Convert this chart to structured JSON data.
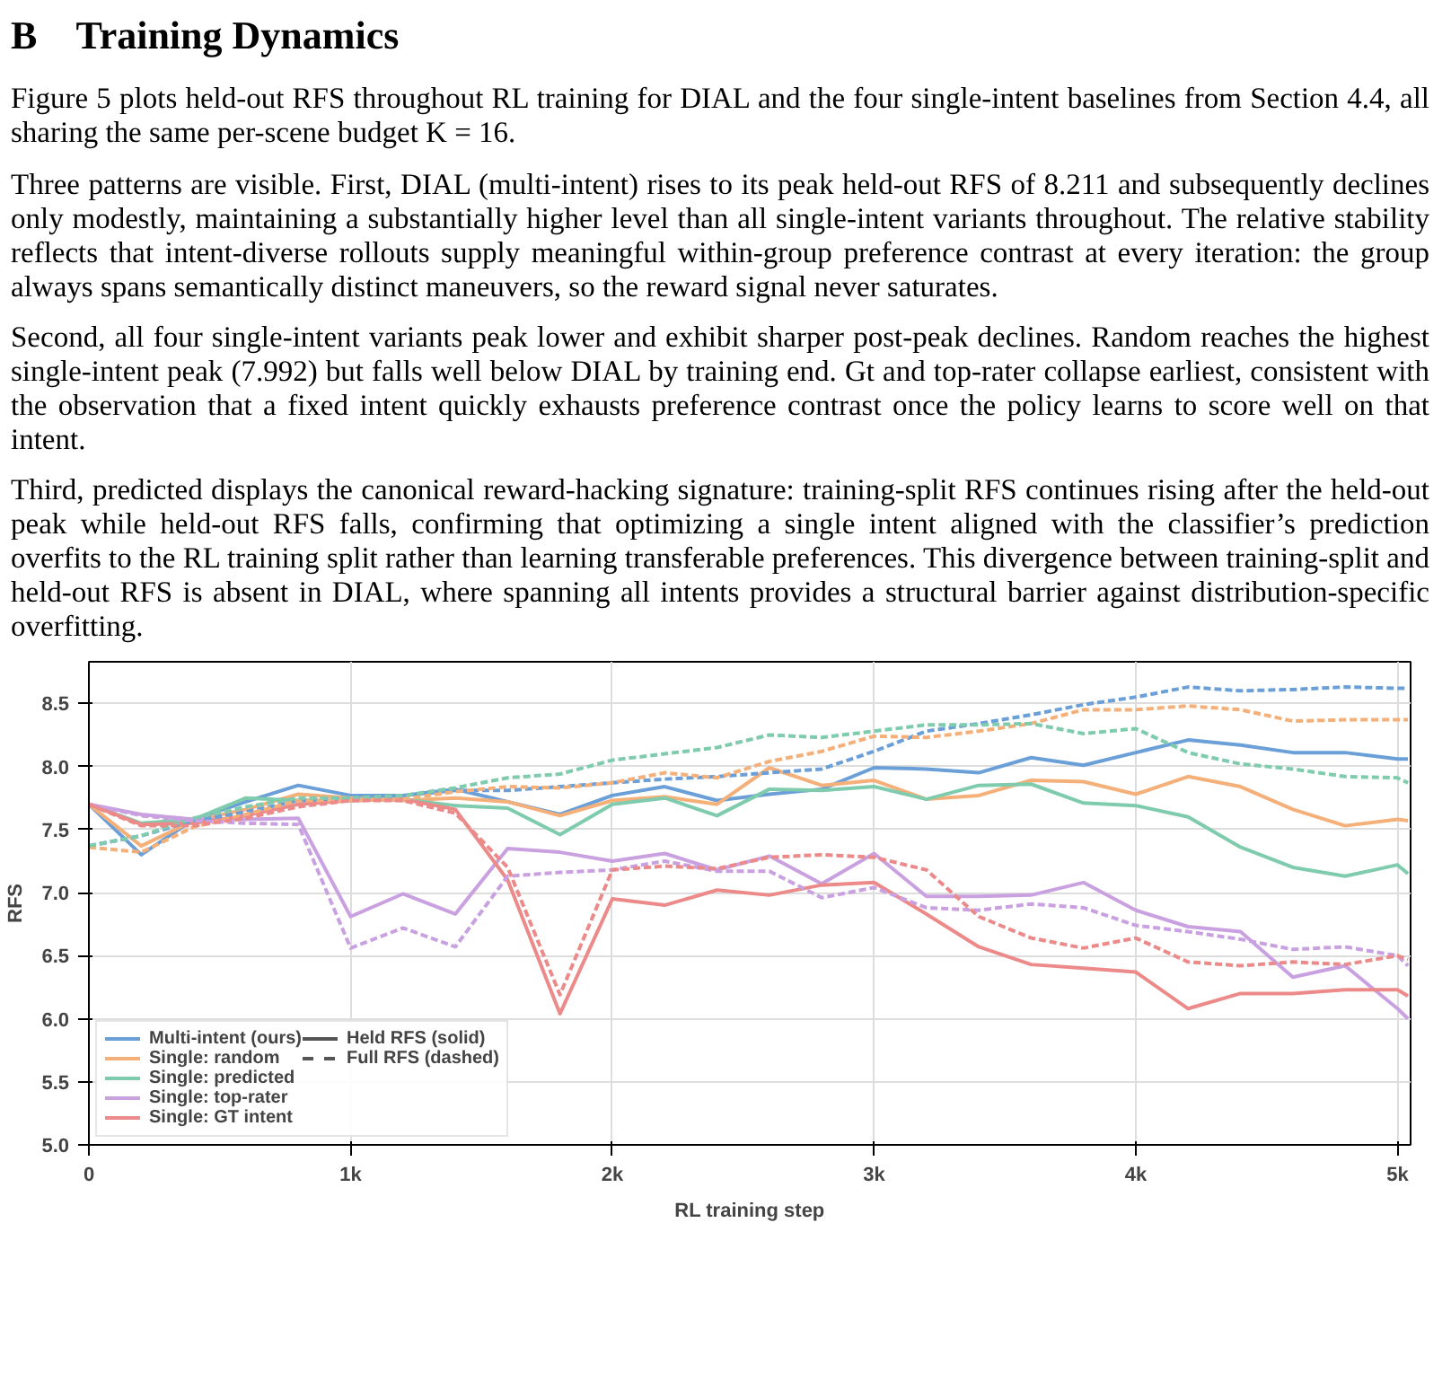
{
  "chart_data": {
    "type": "line",
    "title": "B    Training Dynamics",
    "annotations": [
      "Figure 5 plots held-out RFS throughout RL training for DIAL and the four single-intent baselines from Section 4.4, all sharing the same per-scene budget K = 16.",
      "Three patterns are visible. First, DIAL (multi-intent) rises to its peak held-out RFS of 8.211 and subsequently declines only modestly, maintaining a substantially higher level than all single-intent variants throughout. The relative stability reflects that intent-diverse rollouts supply meaningful within-group preference contrast at every iteration: the group always spans semantically distinct maneuvers, so the reward signal never saturates.",
      "Second, all four single-intent variants peak lower and exhibit sharper post-peak declines. Random reaches the highest single-intent peak (7.992) but falls well below DIAL by training end. Gt and top-rater collapse earliest, consistent with the observation that a fixed intent quickly exhausts preference contrast once the policy learns to score well on that intent.",
      "Third, predicted displays the canonical reward-hacking signature: training-split RFS continues rising after the held-out peak while held-out RFS falls, confirming that optimizing a single intent aligned with the classifier’s prediction overfits to the RL training split rather than learning transferable preferences. This divergence between training-split and held-out RFS is absent in DIAL, where spanning all intents provides a structural barrier against distribution-specific overfitting.",
      "Held RFS (solid)",
      "Full RFS (dashed)"
    ],
    "xlabel": "RL training step",
    "ylabel": "RFS",
    "x": [
      0,
      200,
      400,
      600,
      800,
      1000,
      1200,
      1400,
      1600,
      1800,
      2000,
      2200,
      2400,
      2600,
      2800,
      3000,
      3200,
      3400,
      3600,
      3800,
      4000,
      4200,
      4400,
      4600,
      4800,
      5000,
      5040
    ],
    "xlim": [
      0,
      5050
    ],
    "ylim": [
      5.0,
      8.83
    ],
    "xticks": [
      {
        "value": 0,
        "label": "0"
      },
      {
        "value": 1000,
        "label": "1k"
      },
      {
        "value": 2000,
        "label": "2k"
      },
      {
        "value": 3000,
        "label": "3k"
      },
      {
        "value": 4000,
        "label": "4k"
      },
      {
        "value": 5000,
        "label": "5k"
      }
    ],
    "yticks": [
      {
        "value": 5,
        "label": "5.0"
      },
      {
        "value": 5.5,
        "label": "5.5"
      },
      {
        "value": 6,
        "label": "6.0"
      },
      {
        "value": 6.5,
        "label": "6.5"
      },
      {
        "value": 7,
        "label": "7.0"
      },
      {
        "value": 7.5,
        "label": "7.5"
      },
      {
        "value": 8,
        "label": "8.0"
      },
      {
        "value": 8.5,
        "label": "8.5"
      }
    ],
    "grid": true,
    "legend": "bottom left",
    "marker": "none",
    "series": [
      {
        "name": "Multi-intent (ours)",
        "color": "#6a9fd8",
        "line_style": "solid",
        "values": [
          7.7,
          7.3,
          7.58,
          7.72,
          7.85,
          7.77,
          7.77,
          7.82,
          7.72,
          7.62,
          7.77,
          7.84,
          7.73,
          7.78,
          7.82,
          7.99,
          7.98,
          7.95,
          8.07,
          8.01,
          8.11,
          8.21,
          8.17,
          8.11,
          8.11,
          8.06,
          8.06
        ]
      },
      {
        "name": "Single: random",
        "color": "#f5b07a",
        "line_style": "solid",
        "values": [
          7.7,
          7.37,
          7.57,
          7.66,
          7.78,
          7.75,
          7.73,
          7.75,
          7.72,
          7.61,
          7.73,
          7.76,
          7.7,
          7.99,
          7.85,
          7.89,
          7.74,
          7.77,
          7.89,
          7.88,
          7.78,
          7.92,
          7.84,
          7.66,
          7.53,
          7.58,
          7.57
        ]
      },
      {
        "name": "Single: predicted",
        "color": "#7fcbae",
        "line_style": "solid",
        "values": [
          7.7,
          7.55,
          7.58,
          7.75,
          7.73,
          7.73,
          7.74,
          7.69,
          7.67,
          7.46,
          7.7,
          7.75,
          7.61,
          7.82,
          7.81,
          7.84,
          7.74,
          7.85,
          7.86,
          7.71,
          7.69,
          7.6,
          7.36,
          7.2,
          7.13,
          7.22,
          7.15
        ]
      },
      {
        "name": "Single: top-rater",
        "color": "#c9a0e0",
        "line_style": "solid",
        "values": [
          7.7,
          7.62,
          7.58,
          7.58,
          7.59,
          6.81,
          6.99,
          6.83,
          7.35,
          7.32,
          7.25,
          7.31,
          7.18,
          7.29,
          7.07,
          7.31,
          6.97,
          6.97,
          6.98,
          7.08,
          6.86,
          6.73,
          6.69,
          6.33,
          6.42,
          6.08,
          6.0
        ]
      },
      {
        "name": "Single: GT intent",
        "color": "#ec8a8a",
        "line_style": "solid",
        "values": [
          7.7,
          7.54,
          7.55,
          7.61,
          7.7,
          7.73,
          7.74,
          7.66,
          7.1,
          6.04,
          6.95,
          6.9,
          7.02,
          6.98,
          7.06,
          7.08,
          6.83,
          6.57,
          6.43,
          6.4,
          6.37,
          6.08,
          6.2,
          6.2,
          6.23,
          6.23,
          6.18
        ]
      },
      {
        "color": "#6a9fd8",
        "line_style": "dashed",
        "values": [
          7.37,
          7.45,
          7.57,
          7.64,
          7.73,
          7.75,
          7.77,
          7.81,
          7.81,
          7.84,
          7.87,
          7.9,
          7.92,
          7.95,
          7.98,
          8.12,
          8.28,
          8.34,
          8.41,
          8.49,
          8.55,
          8.63,
          8.6,
          8.61,
          8.63,
          8.62,
          8.62
        ]
      },
      {
        "color": "#f5b07a",
        "line_style": "dashed",
        "values": [
          7.36,
          7.32,
          7.52,
          7.62,
          7.73,
          7.73,
          7.74,
          7.8,
          7.84,
          7.83,
          7.87,
          7.95,
          7.91,
          8.04,
          8.12,
          8.24,
          8.23,
          8.28,
          8.34,
          8.45,
          8.45,
          8.48,
          8.45,
          8.36,
          8.37,
          8.37,
          8.37
        ]
      },
      {
        "color": "#7fcbae",
        "line_style": "dashed",
        "values": [
          7.37,
          7.45,
          7.59,
          7.68,
          7.75,
          7.75,
          7.77,
          7.83,
          7.91,
          7.94,
          8.05,
          8.1,
          8.15,
          8.25,
          8.23,
          8.28,
          8.33,
          8.33,
          8.34,
          8.26,
          8.3,
          8.11,
          8.02,
          7.98,
          7.92,
          7.91,
          7.87
        ]
      },
      {
        "color": "#c9a0e0",
        "line_style": "dashed",
        "values": [
          7.7,
          7.61,
          7.57,
          7.55,
          7.54,
          6.56,
          6.72,
          6.57,
          7.13,
          7.16,
          7.18,
          7.25,
          7.17,
          7.17,
          6.96,
          7.04,
          6.88,
          6.86,
          6.91,
          6.88,
          6.74,
          6.69,
          6.63,
          6.55,
          6.57,
          6.5,
          6.42
        ]
      },
      {
        "color": "#ec8a8a",
        "line_style": "dashed",
        "values": [
          7.7,
          7.53,
          7.53,
          7.59,
          7.68,
          7.73,
          7.73,
          7.63,
          7.2,
          6.19,
          7.18,
          7.21,
          7.19,
          7.28,
          7.3,
          7.28,
          7.18,
          6.81,
          6.64,
          6.56,
          6.64,
          6.45,
          6.42,
          6.45,
          6.43,
          6.5,
          6.47
        ]
      }
    ]
  }
}
